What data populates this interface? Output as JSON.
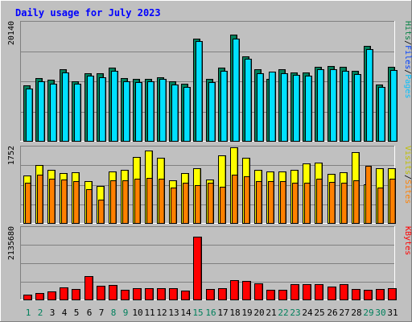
{
  "chart_data": {
    "type": "bar",
    "title": "Daily usage for July 2023",
    "categories": [
      "1",
      "2",
      "3",
      "4",
      "5",
      "6",
      "7",
      "8",
      "9",
      "10",
      "11",
      "12",
      "13",
      "14",
      "15",
      "16",
      "17",
      "18",
      "19",
      "20",
      "21",
      "22",
      "23",
      "24",
      "25",
      "26",
      "27",
      "28",
      "29",
      "30",
      "31"
    ],
    "weekend_days": [
      "1",
      "2",
      "8",
      "9",
      "15",
      "16",
      "22",
      "23",
      "29",
      "30"
    ],
    "panels": [
      {
        "id": "pages-files-hits",
        "ymax_label": "20140",
        "ymax": 20140,
        "legend": [
          {
            "label": "Hits",
            "color": "#008040"
          },
          {
            "label": "/",
            "color": "#000000"
          },
          {
            "label": "Files",
            "color": "#0040ff"
          },
          {
            "label": "/",
            "color": "#000000"
          },
          {
            "label": "Pages",
            "color": "#00c0ff"
          }
        ],
        "series": [
          {
            "name": "Hits",
            "color": "#00805c",
            "values": [
              9600,
              10900,
              10600,
              12400,
              10400,
              11800,
              11700,
              12700,
              10900,
              10700,
              10800,
              11000,
              10300,
              9900,
              17700,
              10800,
              12700,
              18400,
              14700,
              12400,
              10700,
              12400,
              11900,
              11900,
              12900,
              13000,
              12800,
              12100,
              16500,
              9800,
              12800
            ]
          },
          {
            "name": "Files",
            "color": "#0000c0",
            "values": [
              6000,
              6200,
              6100,
              6500,
              6000,
              6400,
              6300,
              6600,
              6200,
              6100,
              6200,
              6300,
              6100,
              5900,
              8200,
              6100,
              6500,
              8500,
              7300,
              6600,
              6100,
              6500,
              6300,
              6300,
              6600,
              6700,
              6600,
              6400,
              7900,
              5900,
              6600
            ]
          },
          {
            "name": "Pages",
            "color": "#00e0ff",
            "values": [
              9100,
              10400,
              10000,
              11900,
              9900,
              11300,
              11000,
              12200,
              10400,
              10200,
              10300,
              10700,
              9800,
              9400,
              17400,
              10200,
              12100,
              17800,
              14200,
              11700,
              12000,
              11700,
              11400,
              11300,
              12400,
              12400,
              12200,
              11600,
              16000,
              9400,
              12300
            ]
          }
        ]
      },
      {
        "id": "sites-visits",
        "ymax_label": "1752",
        "ymax": 1752,
        "legend": [
          {
            "label": "Visits",
            "color": "#c0c000"
          },
          {
            "label": "/",
            "color": "#000000"
          },
          {
            "label": "Sites",
            "color": "#ff8000"
          }
        ],
        "series": [
          {
            "name": "Visits",
            "color": "#ffff00",
            "values": [
              1130,
              1380,
              1270,
              1200,
              1210,
              1000,
              880,
              1240,
              1270,
              1580,
              1740,
              1560,
              1020,
              1190,
              1300,
              1040,
              1610,
              1810,
              1550,
              1280,
              1240,
              1240,
              1270,
              1430,
              1440,
              1180,
              1220,
              1690,
              920,
              1300,
              1300
            ]
          },
          {
            "name": "Sites",
            "color": "#ff8000",
            "values": [
              960,
              1150,
              1050,
              1040,
              1010,
              800,
              550,
              1020,
              1020,
              1050,
              1080,
              1060,
              850,
              960,
              900,
              960,
              860,
              1150,
              1110,
              1010,
              1010,
              1010,
              960,
              960,
              1060,
              990,
              960,
              1020,
              1370,
              850,
              1050
            ]
          }
        ]
      },
      {
        "id": "kbytes",
        "ymax_label": "2135680",
        "ymax": 2135680,
        "legend": [
          {
            "label": "KBytes",
            "color": "#ff0000"
          }
        ],
        "series": [
          {
            "name": "KBytes",
            "color": "#ff0000",
            "values": [
              160000,
              190000,
              260000,
              370000,
              330000,
              720000,
              420000,
              440000,
              310000,
              360000,
              350000,
              340000,
              340000,
              280000,
              1940000,
              330000,
              340000,
              590000,
              570000,
              500000,
              310000,
              310000,
              470000,
              460000,
              460000,
              400000,
              460000,
              320000,
              300000,
              320000,
              350000
            ]
          }
        ]
      }
    ]
  }
}
